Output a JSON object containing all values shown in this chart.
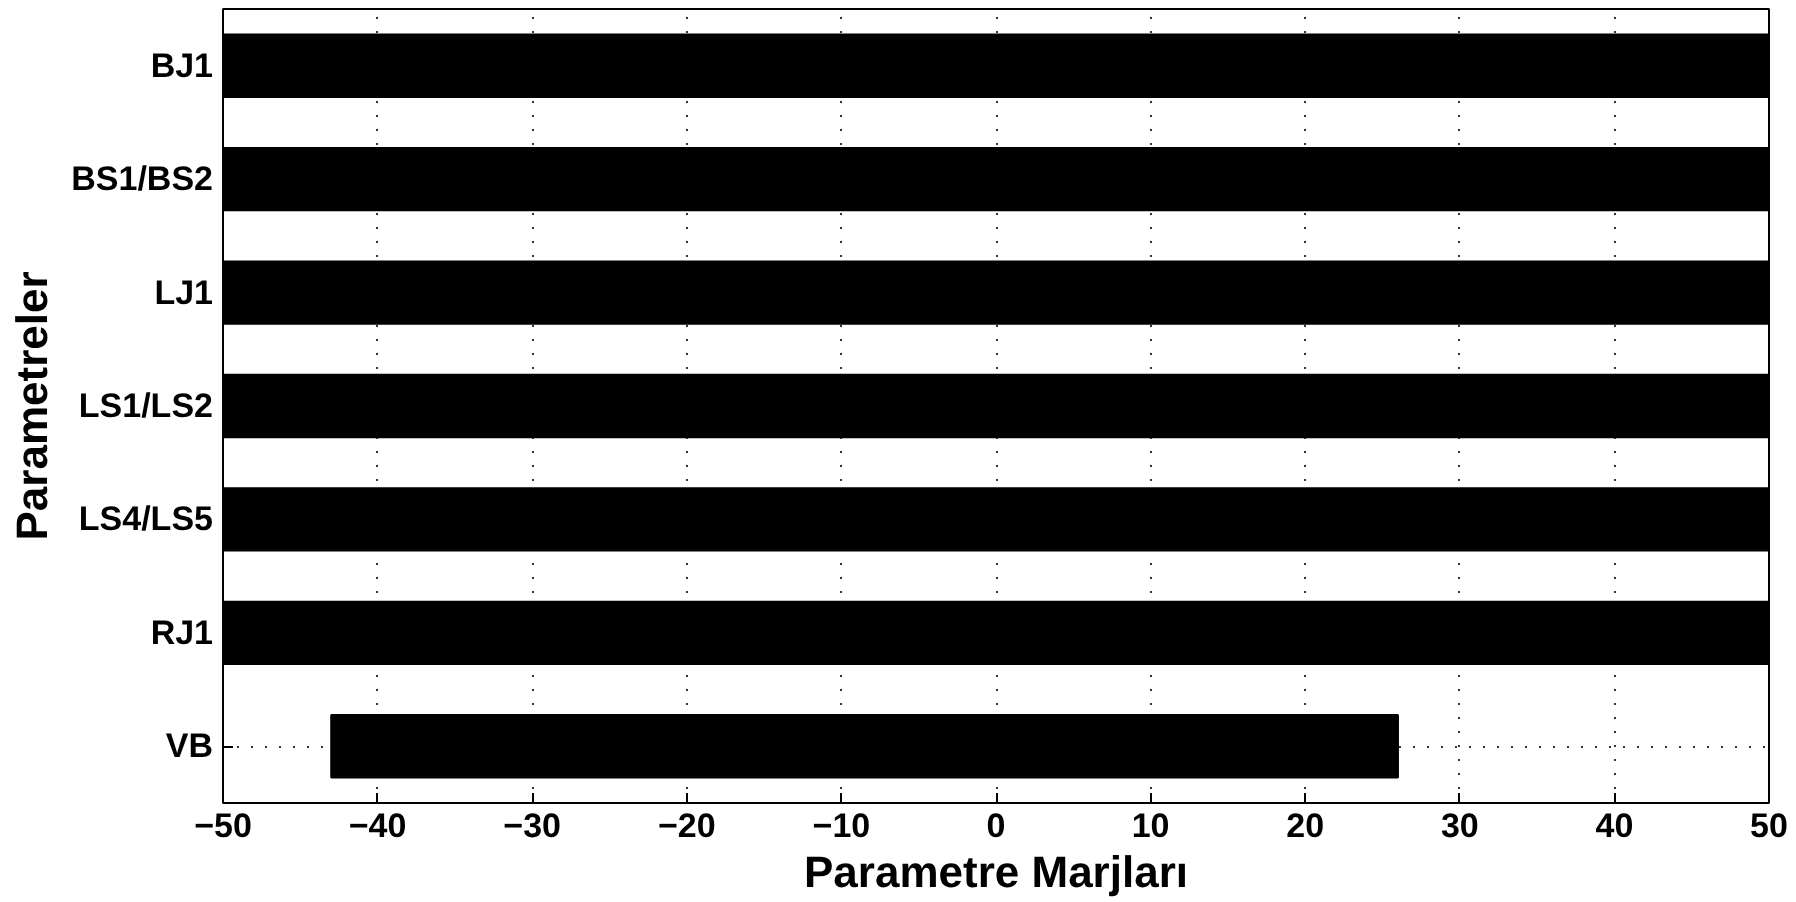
{
  "chart_data": {
    "type": "bar",
    "orientation": "horizontal",
    "xlabel": "Parametre Marjları",
    "ylabel": "Parametreler",
    "categories": [
      "BJ1",
      "BS1/BS2",
      "LJ1",
      "LS1/LS2",
      "LS4/LS5",
      "RJ1",
      "VB"
    ],
    "values": [
      100,
      100,
      100,
      100,
      100,
      100,
      69
    ],
    "base": [
      -50,
      -50,
      -50,
      -50,
      -50,
      -50,
      -43
    ],
    "color": "#000000",
    "xlim": [
      -50,
      50
    ],
    "xticks": [
      -50,
      -40,
      -30,
      -20,
      -10,
      0,
      10,
      20,
      30,
      40,
      50
    ],
    "grid": true
  }
}
